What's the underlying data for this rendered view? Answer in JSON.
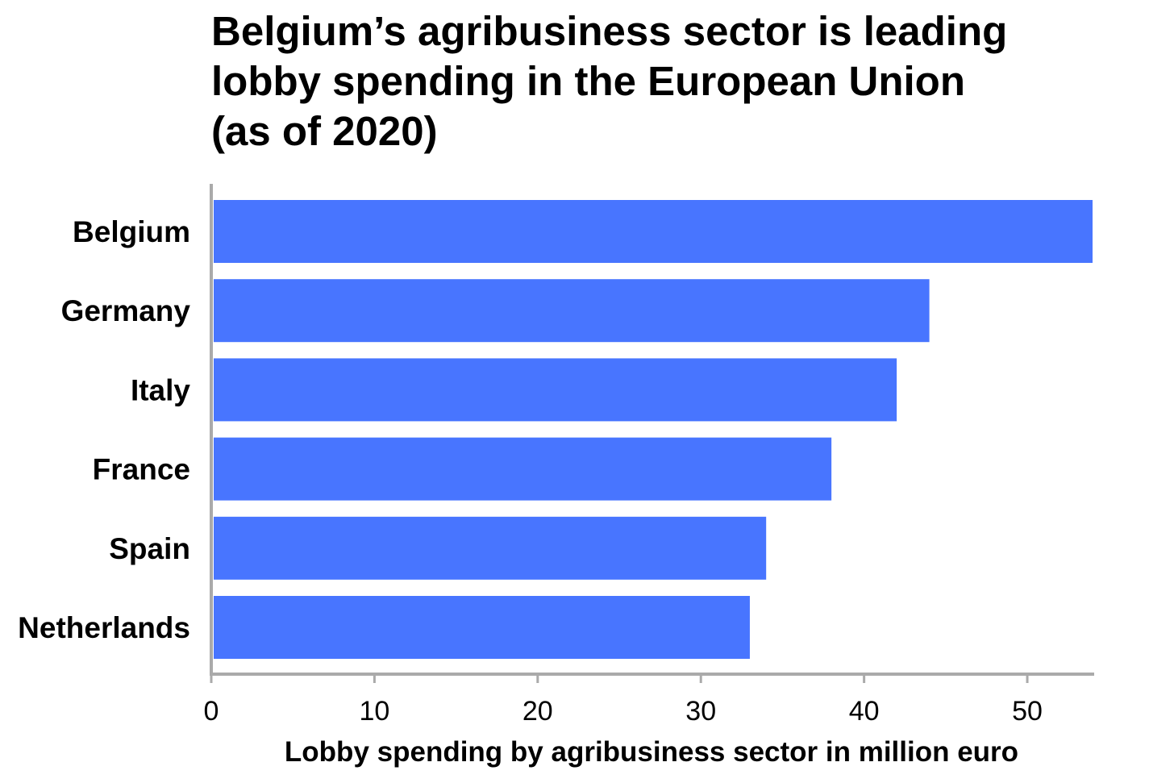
{
  "chart_data": {
    "type": "bar",
    "orientation": "horizontal",
    "title_lines": [
      "Belgium’s agribusiness sector is leading",
      "lobby spending in the European Union",
      "(as of 2020)"
    ],
    "categories": [
      "Belgium",
      "Germany",
      "Italy",
      "France",
      "Spain",
      "Netherlands"
    ],
    "values": [
      54,
      44,
      42,
      38,
      34,
      33
    ],
    "xlabel": "Lobby spending by agribusiness sector in million euro",
    "ylabel": "",
    "xlim": [
      0,
      54
    ],
    "xticks": [
      0,
      10,
      20,
      30,
      40,
      50
    ],
    "grid": false,
    "colors": {
      "bar": "#4875ff",
      "axis": "#aaaaaa"
    }
  }
}
